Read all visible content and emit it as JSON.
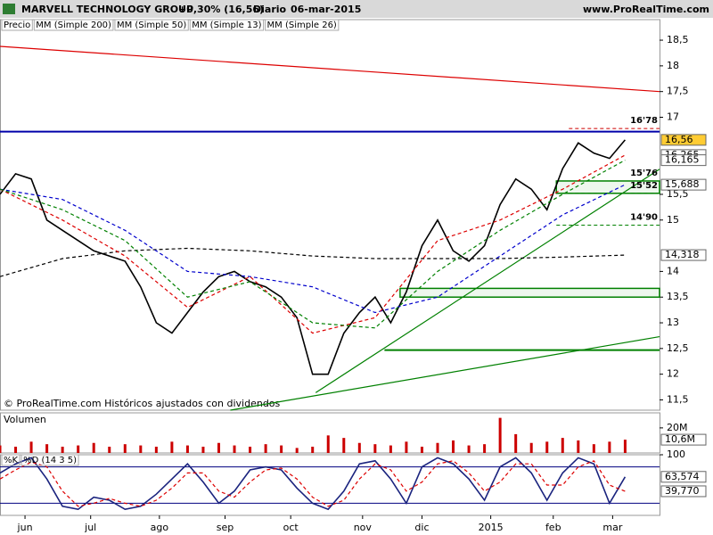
{
  "header": {
    "title": "MARVELL TECHNOLOGY GROUP",
    "change": "+0,30% (16,56)",
    "period": "Diario",
    "date": "06-mar-2015",
    "site": "www.ProRealTime.com"
  },
  "footer_note": "© ProRealTime.com Históricos ajustados con dividendos",
  "chart_data": [
    {
      "type": "line",
      "x": [
        0,
        5,
        10,
        15,
        20,
        25,
        30,
        35,
        40,
        45,
        50,
        55,
        60,
        65,
        70,
        75,
        80,
        85,
        90,
        95,
        100,
        105,
        110,
        115,
        120,
        125,
        130,
        135,
        140,
        145,
        150,
        155,
        160,
        165,
        170,
        175,
        180,
        185,
        190,
        195,
        200
      ],
      "xlim": [
        0,
        211
      ],
      "ylim": [
        11.3,
        18.9
      ],
      "yticks": [
        {
          "value": 18.5,
          "label": "18,5"
        },
        18,
        {
          "value": 17.5,
          "label": "17,5"
        },
        17,
        {
          "value": 15.5,
          "label": "15,5"
        },
        15,
        14,
        {
          "value": 13.5,
          "label": "13,5"
        },
        13,
        {
          "value": 12.5,
          "label": "12,5"
        },
        12,
        {
          "value": 11.5,
          "label": "11,5"
        }
      ],
      "series": [
        {
          "name": "Precio",
          "color": "#000000",
          "values": [
            15.5,
            15.9,
            15.8,
            15.0,
            14.8,
            14.6,
            14.4,
            14.3,
            14.2,
            13.7,
            13.0,
            12.8,
            13.2,
            13.6,
            13.9,
            14.0,
            13.8,
            13.7,
            13.5,
            13.1,
            12.0,
            12.0,
            12.8,
            13.2,
            13.5,
            13.0,
            13.6,
            14.5,
            15.0,
            14.4,
            14.2,
            14.5,
            15.3,
            15.8,
            15.6,
            15.2,
            16.0,
            16.5,
            16.3,
            16.2,
            16.56
          ]
        },
        {
          "name": "MM (Simple 200)",
          "color": "#000000",
          "dashed": true,
          "x": [
            0,
            20,
            40,
            60,
            80,
            100,
            120,
            140,
            160,
            180,
            200
          ],
          "values": [
            13.9,
            14.25,
            14.4,
            14.45,
            14.4,
            14.3,
            14.25,
            14.25,
            14.25,
            14.28,
            14.318
          ]
        },
        {
          "name": "MM (Simple 50)",
          "color": "#0000cc",
          "dashed": true,
          "x": [
            0,
            20,
            40,
            60,
            80,
            100,
            120,
            140,
            160,
            180,
            200
          ],
          "values": [
            15.6,
            15.4,
            14.8,
            14.0,
            13.9,
            13.7,
            13.2,
            13.5,
            14.3,
            15.1,
            15.688
          ]
        },
        {
          "name": "MM (Simple 13)",
          "color": "#dd0000",
          "dashed": true,
          "x": [
            0,
            20,
            40,
            60,
            80,
            100,
            120,
            140,
            160,
            180,
            200
          ],
          "values": [
            15.6,
            15.0,
            14.3,
            13.3,
            13.9,
            12.8,
            13.1,
            14.6,
            15.0,
            15.6,
            16.265
          ]
        },
        {
          "name": "MM (Simple 26)",
          "color": "#008000",
          "dashed": true,
          "x": [
            0,
            20,
            40,
            60,
            80,
            100,
            120,
            140,
            160,
            180,
            200
          ],
          "values": [
            15.6,
            15.2,
            14.6,
            13.5,
            13.8,
            13.0,
            12.9,
            14.0,
            14.8,
            15.5,
            16.165
          ]
        }
      ],
      "flags": [
        {
          "value": 16.56,
          "label": "16,56",
          "color": "#ffcc33",
          "text_color": "#000000"
        },
        {
          "value": 16.265,
          "label": "16,265",
          "color": "#ffffff",
          "text_color": "#dd0000"
        },
        {
          "value": 16.165,
          "label": "16,165",
          "color": "#ffffff",
          "text_color": "#008000"
        },
        {
          "value": 15.688,
          "label": "15,688",
          "color": "#ffffff",
          "text_color": "#000080"
        },
        {
          "value": 14.318,
          "label": "14,318",
          "color": "#ffffff",
          "text_color": "#000000"
        }
      ],
      "levels": [
        {
          "value": 16.78,
          "label": "16'78",
          "color": "#cc0000",
          "x": [
            182,
            211
          ]
        },
        {
          "value": 15.76,
          "label": "15'76",
          "color": "#008000",
          "x": [
            178,
            211
          ]
        },
        {
          "value": 15.52,
          "label": "15'52",
          "color": "#008000",
          "x": [
            178,
            211
          ]
        },
        {
          "value": 14.9,
          "label": "14'90",
          "color": "#008000",
          "x": [
            178,
            211
          ]
        }
      ],
      "hlines": [
        {
          "value": 16.72,
          "color": "#0000aa",
          "x": [
            0,
            211
          ]
        },
        {
          "value": 12.47,
          "color": "#008000",
          "x": [
            123,
            211
          ]
        }
      ],
      "zones": [
        {
          "x": [
            178,
            211
          ],
          "y": [
            15.52,
            15.76
          ],
          "color": "#008000"
        },
        {
          "x": [
            128,
            211
          ],
          "y": [
            13.5,
            13.67
          ],
          "color": "#008000"
        }
      ],
      "trendlines": [
        {
          "x": [
            0,
            211
          ],
          "y": [
            18.38,
            17.5
          ],
          "color": "#dd0000"
        },
        {
          "x": [
            73.7,
            211
          ],
          "y": [
            11.3,
            12.73
          ],
          "color": "#008000"
        },
        {
          "x": [
            101,
            211
          ],
          "y": [
            11.64,
            15.99
          ],
          "color": "#008000"
        }
      ]
    },
    {
      "type": "bar",
      "title": "Volumen",
      "x": [
        0,
        5,
        10,
        15,
        20,
        25,
        30,
        35,
        40,
        45,
        50,
        55,
        60,
        65,
        70,
        75,
        80,
        85,
        90,
        95,
        100,
        105,
        110,
        115,
        120,
        125,
        130,
        135,
        140,
        145,
        150,
        155,
        160,
        165,
        170,
        175,
        180,
        185,
        190,
        195,
        200
      ],
      "xlim": [
        0,
        211
      ],
      "ylim": [
        0,
        32000000
      ],
      "yticks": [
        {
          "value": 20000000,
          "label": "20M"
        }
      ],
      "series": [
        {
          "name": "Volumen",
          "color": "#cc0000",
          "values": [
            6000000,
            5000000,
            9000000,
            7000000,
            5000000,
            6000000,
            8000000,
            5000000,
            7000000,
            6000000,
            5000000,
            9000000,
            6000000,
            5000000,
            8000000,
            6000000,
            5000000,
            7000000,
            6000000,
            4000000,
            5000000,
            14000000,
            12000000,
            8000000,
            7000000,
            6000000,
            9000000,
            5000000,
            8000000,
            10000000,
            6000000,
            7000000,
            28000000,
            15000000,
            8000000,
            9000000,
            12000000,
            10000000,
            7000000,
            9000000,
            10600000
          ]
        }
      ],
      "flags": [
        {
          "value": 10600000,
          "label": "10,6M",
          "color": "#ffffff",
          "text_color": "#000000"
        }
      ]
    },
    {
      "type": "line",
      "x": [
        0,
        5,
        10,
        15,
        20,
        25,
        30,
        35,
        40,
        45,
        50,
        55,
        60,
        65,
        70,
        75,
        80,
        85,
        90,
        95,
        100,
        105,
        110,
        115,
        120,
        125,
        130,
        135,
        140,
        145,
        150,
        155,
        160,
        165,
        170,
        175,
        180,
        185,
        190,
        195,
        200
      ],
      "xlim": [
        0,
        211
      ],
      "ylim": [
        0,
        100
      ],
      "xticks": [
        {
          "value": 8,
          "label": "jun"
        },
        {
          "value": 29,
          "label": "jul"
        },
        {
          "value": 51,
          "label": "ago"
        },
        {
          "value": 72,
          "label": "sep"
        },
        {
          "value": 93,
          "label": "oct"
        },
        {
          "value": 116,
          "label": "nov"
        },
        {
          "value": 135,
          "label": "dic"
        },
        {
          "value": 157,
          "label": "2015"
        },
        {
          "value": 177,
          "label": "feb"
        },
        {
          "value": 196,
          "label": "mar"
        }
      ],
      "yticks": [
        100
      ],
      "bands": [
        20,
        80
      ],
      "series": [
        {
          "name": "%K",
          "color": "#1a237e",
          "values": [
            70,
            85,
            95,
            60,
            15,
            10,
            30,
            25,
            10,
            15,
            35,
            60,
            85,
            55,
            20,
            40,
            75,
            80,
            75,
            45,
            20,
            10,
            40,
            85,
            90,
            60,
            20,
            80,
            95,
            85,
            60,
            25,
            80,
            95,
            70,
            25,
            70,
            95,
            85,
            20,
            63.574
          ]
        },
        {
          "name": "%D (14 3 5)",
          "color": "#dd0000",
          "dashed": true,
          "values": [
            60,
            75,
            88,
            80,
            40,
            15,
            20,
            28,
            20,
            15,
            25,
            45,
            70,
            70,
            40,
            30,
            55,
            75,
            78,
            60,
            30,
            15,
            25,
            60,
            85,
            75,
            40,
            55,
            85,
            90,
            70,
            40,
            55,
            85,
            85,
            50,
            50,
            80,
            90,
            50,
            39.77
          ]
        }
      ],
      "flags": [
        {
          "value": 63.574,
          "label": "63,574",
          "color": "#ffffff",
          "text_color": "#000000"
        },
        {
          "value": 39.77,
          "label": "39,770",
          "color": "#ffffff",
          "text_color": "#dd0000"
        }
      ]
    }
  ]
}
